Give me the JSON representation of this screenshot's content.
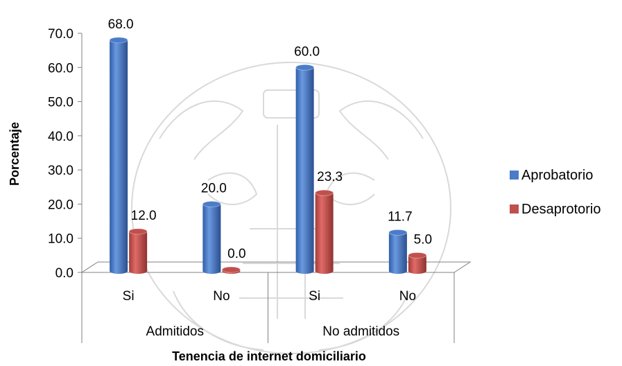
{
  "chart_data": {
    "type": "bar",
    "style": "3d-cylinder",
    "groups": [
      {
        "label": "Admitidos",
        "categories": [
          "Si",
          "No"
        ]
      },
      {
        "label": "No admitidos",
        "categories": [
          "Si",
          "No"
        ]
      }
    ],
    "categories": [
      "Si",
      "No",
      "Si",
      "No"
    ],
    "series": [
      {
        "name": "Aprobatorio",
        "values": [
          68.0,
          20.0,
          60.0,
          11.7
        ],
        "color": "#4a7cc9"
      },
      {
        "name": "Desaprotorio",
        "values": [
          12.0,
          0.0,
          23.3,
          5.0
        ],
        "color": "#c0504d"
      }
    ],
    "value_format": "0.0",
    "xlabel": "Tenencia de internet domiciliario",
    "ylabel": "Porcentaje",
    "ylim": [
      0,
      70
    ],
    "yticks": [
      0,
      10,
      20,
      30,
      40,
      50,
      60,
      70
    ],
    "grid": false,
    "legend_position": "right"
  }
}
